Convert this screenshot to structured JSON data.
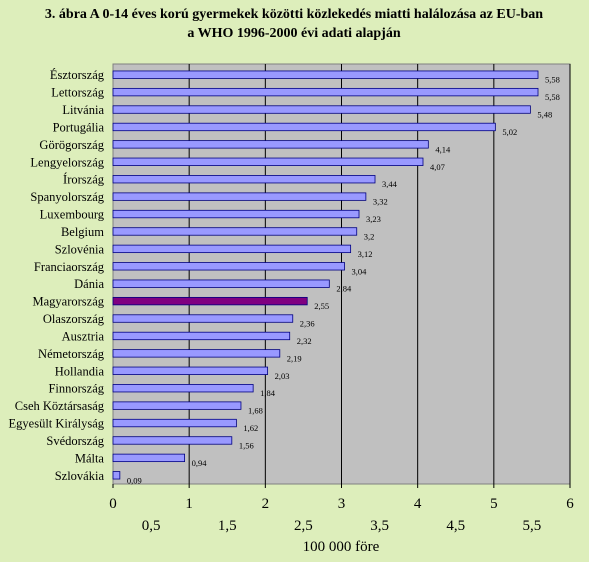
{
  "chart_data": {
    "type": "bar",
    "orientation": "horizontal",
    "title_lines": [
      "3. ábra A 0-14 éves korú gyermekek közötti közlekedés miatti halálozása az EU-ban",
      "a WHO 1996-2000 évi adati alapján"
    ],
    "xlabel": "100 000 före",
    "xlim": [
      0,
      6
    ],
    "ticks_major": [
      "0",
      "1",
      "2",
      "3",
      "4",
      "5",
      "6"
    ],
    "ticks_minor": [
      "0,5",
      "1,5",
      "2,5",
      "3,5",
      "4,5",
      "5,5"
    ],
    "grid": "vertical",
    "categories": [
      "Észtország",
      "Lettország",
      "Litvánia",
      "Portugália",
      "Görögország",
      "Lengyelország",
      "Írország",
      "Spanyolország",
      "Luxembourg",
      "Belgium",
      "Szlovénia",
      "Franciaország",
      "Dánia",
      "Magyarország",
      "Olaszország",
      "Ausztria",
      "Németország",
      "Hollandia",
      "Finnország",
      "Cseh Köztársaság",
      "Egyesült Királyság",
      "Svédország",
      "Málta",
      "Szlovákia"
    ],
    "values": [
      5.58,
      5.58,
      5.48,
      5.02,
      4.14,
      4.07,
      3.44,
      3.32,
      3.23,
      3.2,
      3.12,
      3.04,
      2.84,
      2.55,
      2.36,
      2.32,
      2.19,
      2.03,
      1.84,
      1.68,
      1.62,
      1.56,
      0.94,
      0.09
    ],
    "value_labels": [
      "5,58",
      "5,58",
      "5,48",
      "5,02",
      "4,14",
      "4,07",
      "3,44",
      "3,32",
      "3,23",
      "3,2",
      "3,12",
      "3,04",
      "2,84",
      "2,55",
      "2,36",
      "2,32",
      "2,19",
      "2,03",
      "1,84",
      "1,68",
      "1,62",
      "1,56",
      "0,94",
      "0,09"
    ],
    "highlight": "Magyarország",
    "colors": {
      "background": "#ddeebb",
      "plot_area": "#c0c0c0",
      "bar": "#9999ff",
      "bar_highlight": "#800080",
      "bar_border": "#000080"
    }
  }
}
